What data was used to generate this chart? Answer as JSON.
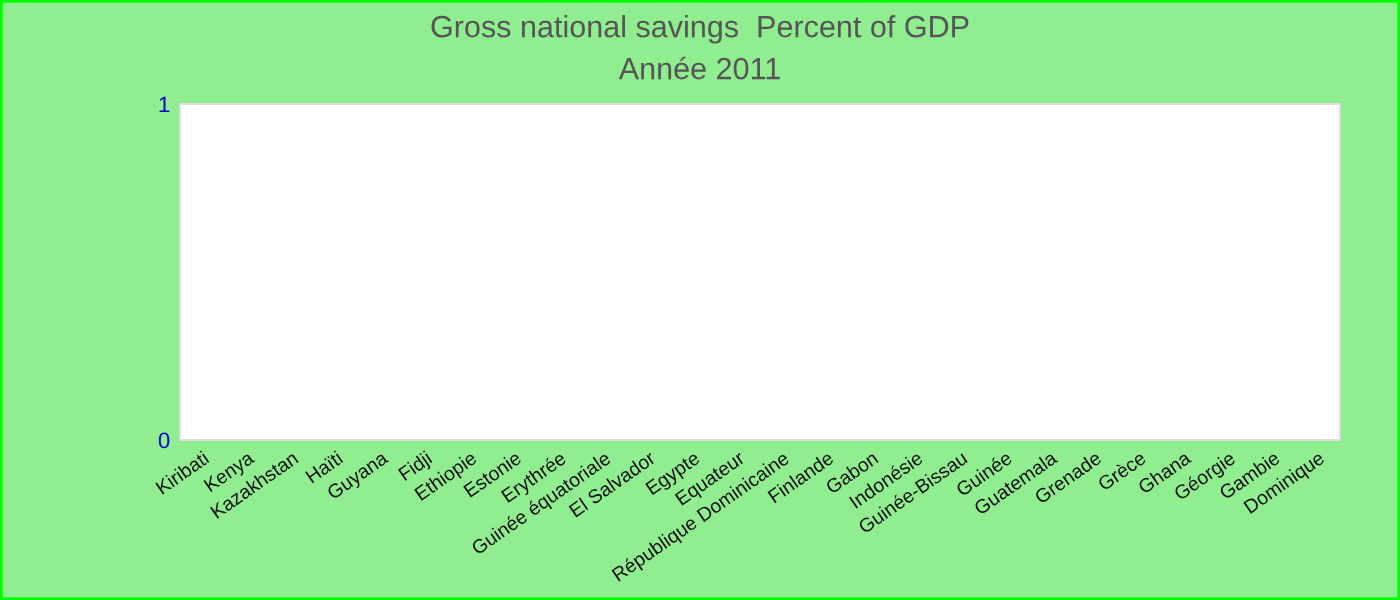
{
  "chart_data": {
    "type": "bar",
    "title": "Gross national savings  Percent of GDP",
    "subtitle": "Année 2011",
    "categories": [
      "Kiribati",
      "Kenya",
      "Kazakhstan",
      "Haïti",
      "Guyana",
      "Fidji",
      "Ethiopie",
      "Estonie",
      "Erythrée",
      "Guinée équatoriale",
      "El Salvador",
      "Egypte",
      "Equateur",
      "République Dominicaine",
      "Finlande",
      "Gabon",
      "Indonésie",
      "Guinée-Bissau",
      "Guinée",
      "Guatemala",
      "Grenade",
      "Grèce",
      "Ghana",
      "Géorgie",
      "Gambie",
      "Dominique"
    ],
    "values": [
      null,
      null,
      null,
      null,
      null,
      null,
      null,
      null,
      null,
      null,
      null,
      null,
      null,
      null,
      null,
      null,
      null,
      null,
      null,
      null,
      null,
      null,
      null,
      null,
      null,
      null
    ],
    "ylim": [
      0,
      1
    ],
    "yticks": [
      0,
      1
    ],
    "grid": false
  }
}
